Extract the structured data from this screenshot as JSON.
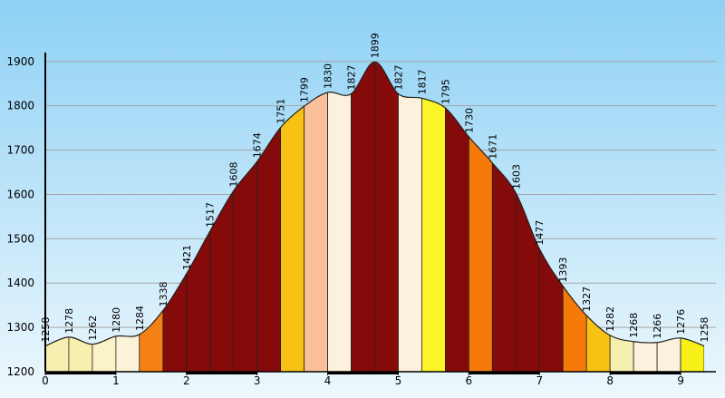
{
  "chart_data": {
    "type": "area",
    "title": "",
    "xlabel": "",
    "ylabel": "",
    "x_ticks": [
      "0",
      "1",
      "2",
      "3",
      "4",
      "5",
      "6",
      "7",
      "8",
      "9"
    ],
    "y_ticks": [
      "1200",
      "1300",
      "1400",
      "1500",
      "1600",
      "1700",
      "1800",
      "1900"
    ],
    "xlim": [
      0,
      9.5
    ],
    "ylim": [
      1200,
      1920
    ],
    "grid": true,
    "points": [
      {
        "x": 0.0,
        "y": 1258
      },
      {
        "x": 0.333,
        "y": 1278
      },
      {
        "x": 0.667,
        "y": 1262
      },
      {
        "x": 1.0,
        "y": 1280
      },
      {
        "x": 1.333,
        "y": 1284
      },
      {
        "x": 1.667,
        "y": 1338
      },
      {
        "x": 2.0,
        "y": 1421
      },
      {
        "x": 2.333,
        "y": 1517
      },
      {
        "x": 2.667,
        "y": 1608
      },
      {
        "x": 3.0,
        "y": 1674
      },
      {
        "x": 3.333,
        "y": 1751
      },
      {
        "x": 3.667,
        "y": 1799
      },
      {
        "x": 4.0,
        "y": 1830
      },
      {
        "x": 4.333,
        "y": 1827
      },
      {
        "x": 4.667,
        "y": 1899
      },
      {
        "x": 5.0,
        "y": 1827
      },
      {
        "x": 5.333,
        "y": 1817
      },
      {
        "x": 5.667,
        "y": 1795
      },
      {
        "x": 6.0,
        "y": 1730
      },
      {
        "x": 6.333,
        "y": 1671
      },
      {
        "x": 6.667,
        "y": 1603
      },
      {
        "x": 7.0,
        "y": 1477
      },
      {
        "x": 7.333,
        "y": 1393
      },
      {
        "x": 7.667,
        "y": 1327
      },
      {
        "x": 8.0,
        "y": 1282
      },
      {
        "x": 8.333,
        "y": 1268
      },
      {
        "x": 8.667,
        "y": 1266
      },
      {
        "x": 9.0,
        "y": 1276
      },
      {
        "x": 9.333,
        "y": 1258
      }
    ],
    "segment_colors": [
      "#f7efb0",
      "#f7efb0",
      "#fbf3c8",
      "#fbf3d8",
      "#f58013",
      "#850a0a",
      "#850a0a",
      "#850a0a",
      "#850a0a",
      "#850a0a",
      "#f8c214",
      "#f9c09a",
      "#fbf1dc",
      "#850a0a",
      "#850a0a",
      "#fbf1dc",
      "#fbf527",
      "#850a0a",
      "#f57a0a",
      "#850a0a",
      "#850a0a",
      "#850a0a",
      "#f57a0a",
      "#f8c214",
      "#f7efb0",
      "#fbf1dc",
      "#fbf1dc",
      "#f8f019"
    ],
    "colors": {
      "sky_top": "#8ed1f5",
      "sky_bottom": "#eef8fd",
      "grid": "#a6a6a6",
      "outline": "#222222"
    }
  }
}
